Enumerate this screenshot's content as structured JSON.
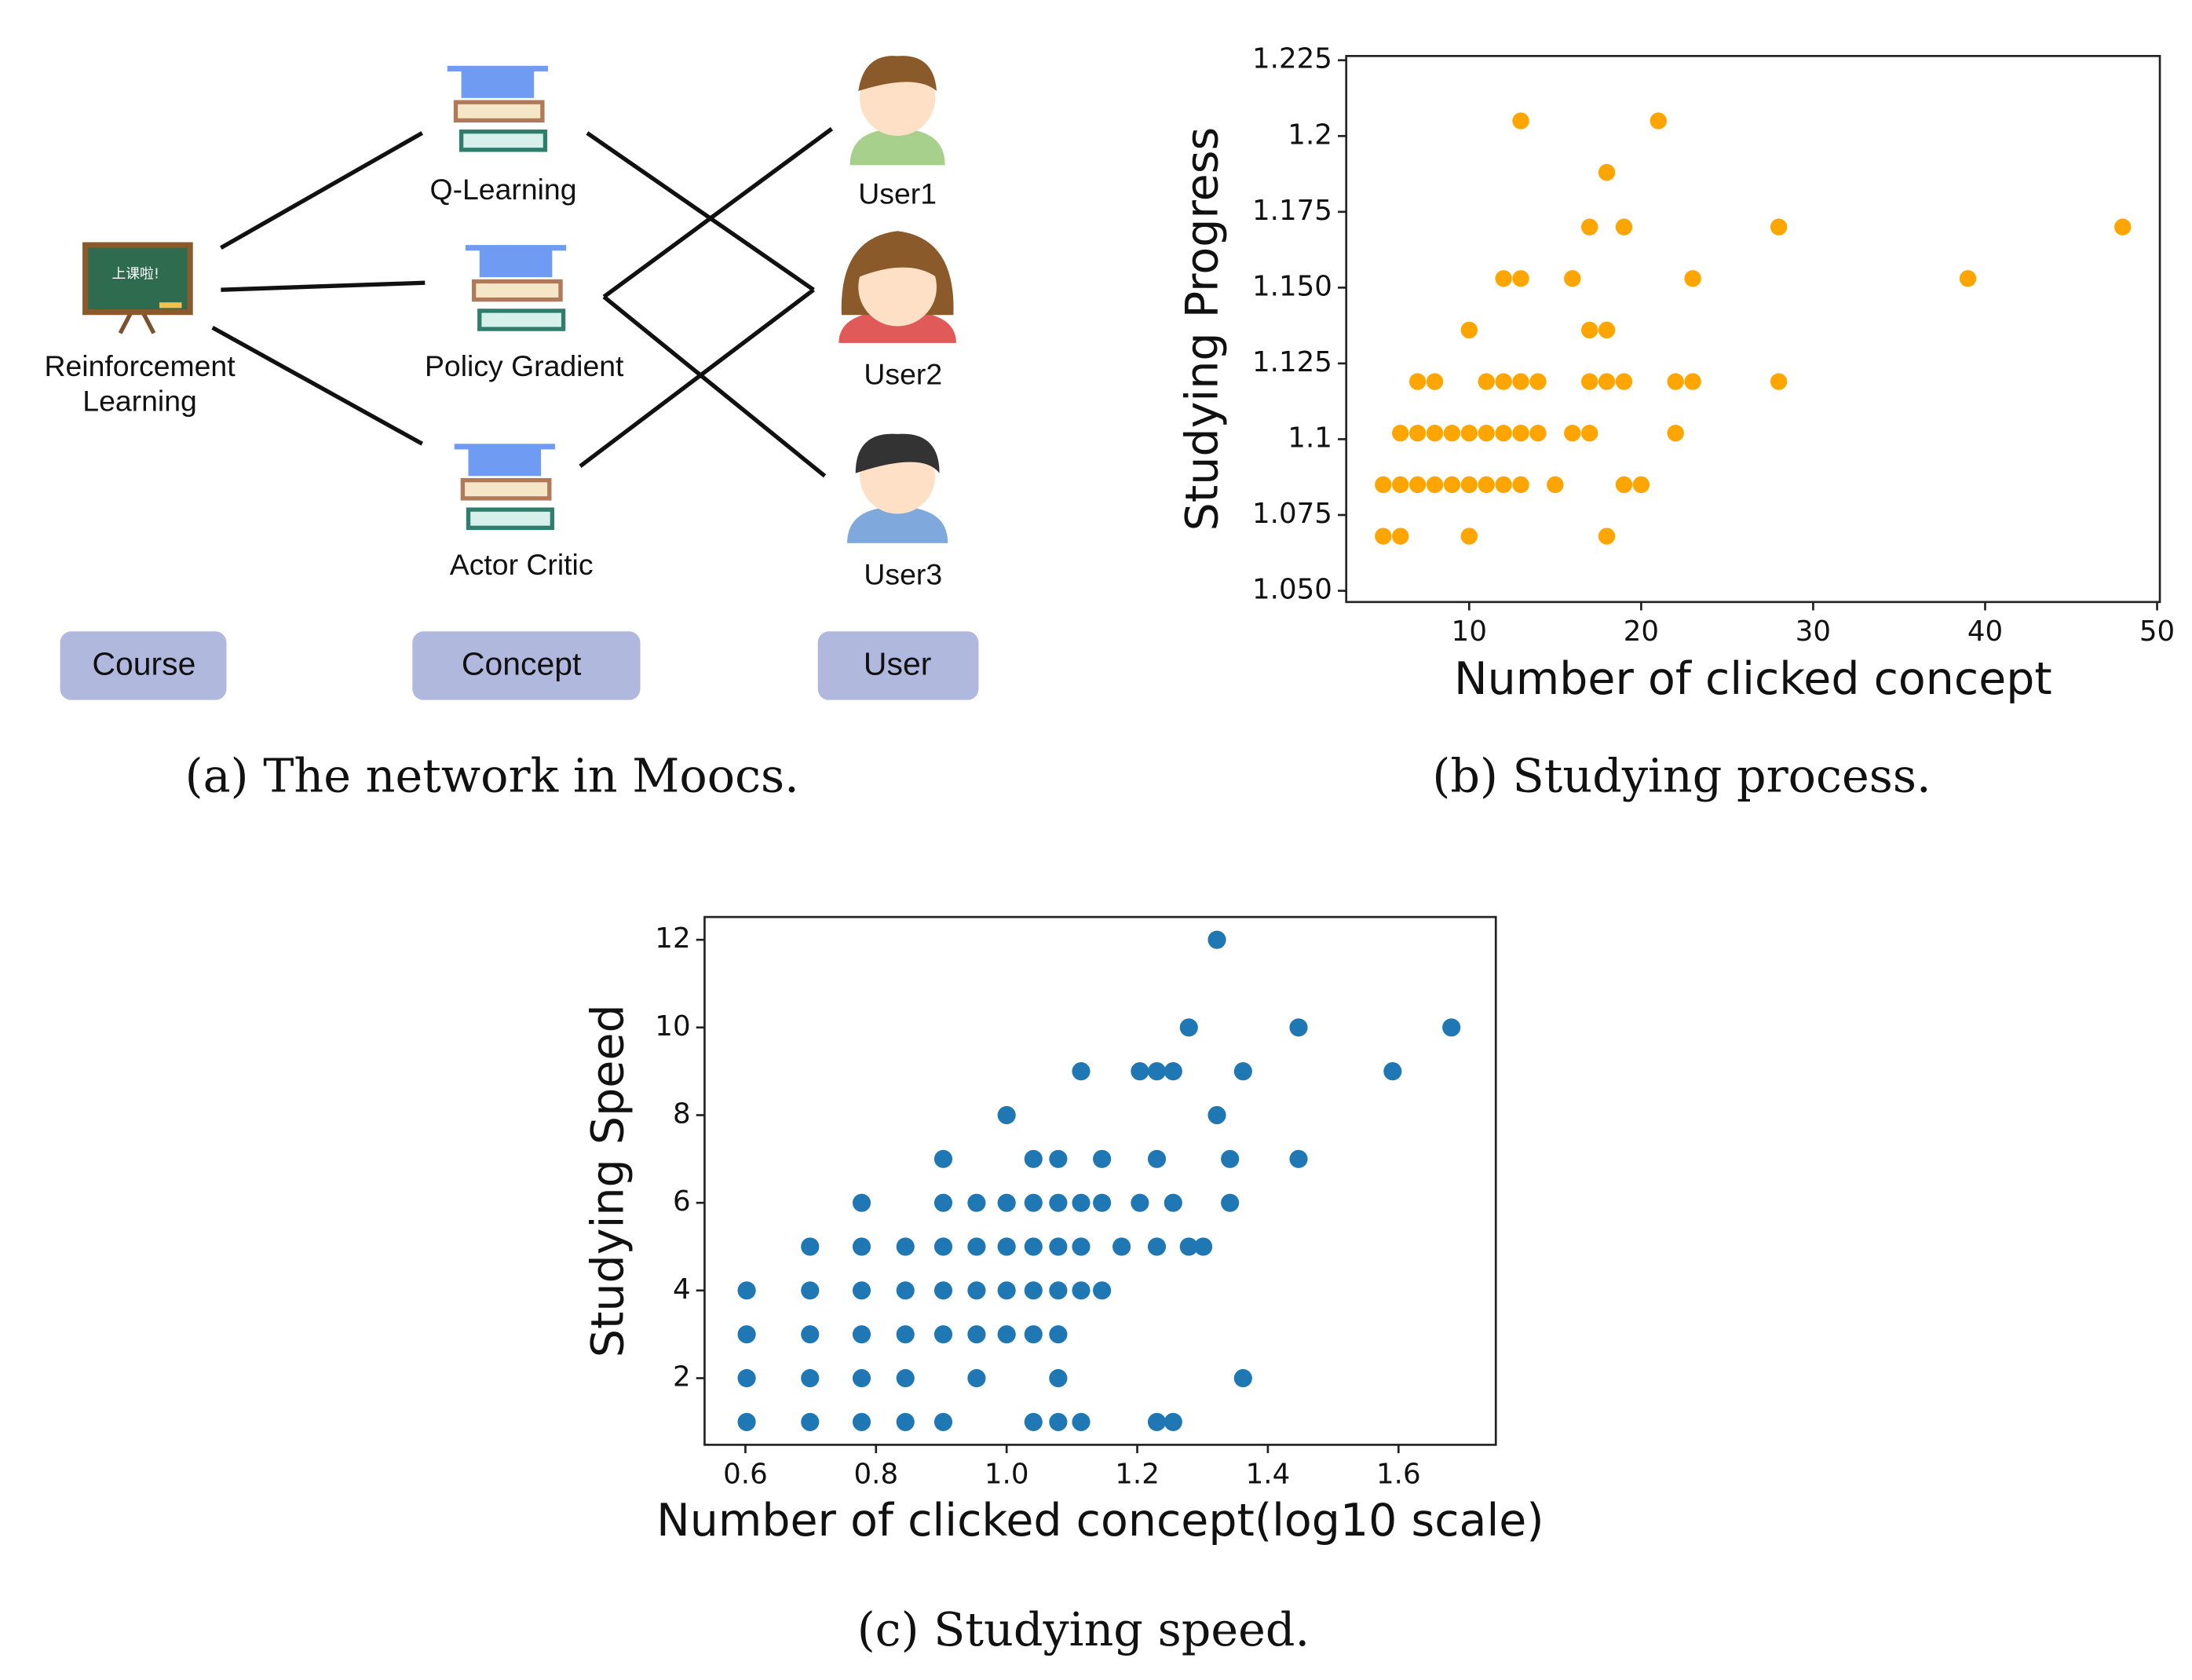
{
  "diagram": {
    "course": {
      "label": [
        "Reinforcement",
        "Learning"
      ],
      "board": "上课啦!"
    },
    "concepts": [
      "Q-Learning",
      "Policy Gradient",
      "Actor Critic"
    ],
    "users": [
      "User1",
      "User2",
      "User3"
    ],
    "legend": [
      "Course",
      "Concept",
      "User"
    ]
  },
  "captions": [
    "(a) The network in Moocs.",
    "(b) Studying process.",
    "(c) Studying speed."
  ],
  "chart_data": [
    {
      "type": "scatter",
      "xlabel": "Number of clicked concept",
      "ylabel": "Studying Progress",
      "color": "#ffa500",
      "xlim": [
        2.85,
        50.16
      ],
      "xticks": [
        10,
        20,
        30,
        40,
        50
      ],
      "ylim": [
        1.0463,
        1.2264
      ],
      "yticks": [
        {
          "value": 1.05,
          "label": "1.050"
        },
        1.075,
        1.1,
        1.125,
        {
          "value": 1.15,
          "label": "1.150"
        },
        1.175,
        1.2,
        1.225
      ],
      "x": [
        13,
        21,
        18,
        17,
        19,
        28,
        48,
        12,
        13,
        16,
        23,
        39,
        10,
        17,
        18,
        7,
        8,
        11,
        12,
        13,
        14,
        17,
        18,
        19,
        22,
        23,
        28,
        6,
        7,
        8,
        9,
        10,
        11,
        12,
        13,
        14,
        16,
        17,
        22,
        5,
        6,
        7,
        8,
        9,
        10,
        11,
        12,
        13,
        15,
        19,
        20,
        5,
        6,
        10,
        18
      ],
      "values": [
        1.205,
        1.205,
        1.188,
        1.17,
        1.17,
        1.17,
        1.17,
        1.153,
        1.153,
        1.153,
        1.153,
        1.153,
        1.136,
        1.136,
        1.136,
        1.119,
        1.119,
        1.119,
        1.119,
        1.119,
        1.119,
        1.119,
        1.119,
        1.119,
        1.119,
        1.119,
        1.119,
        1.102,
        1.102,
        1.102,
        1.102,
        1.102,
        1.102,
        1.102,
        1.102,
        1.102,
        1.102,
        1.102,
        1.102,
        1.085,
        1.085,
        1.085,
        1.085,
        1.085,
        1.085,
        1.085,
        1.085,
        1.085,
        1.085,
        1.085,
        1.085,
        1.068,
        1.068,
        1.068,
        1.068
      ]
    },
    {
      "type": "scatter",
      "xlabel": "Number of clicked concept(log10 scale)",
      "ylabel": "Studying Speed",
      "color": "#1f77b4",
      "xlim": [
        0.5375,
        1.749
      ],
      "xticks": [
        0.6,
        0.8,
        {
          "value": 1,
          "label": "1.0"
        },
        1.2,
        1.4,
        1.6
      ],
      "ylim": [
        0.48,
        12.52
      ],
      "yticks": [
        2,
        4,
        6,
        8,
        10,
        12
      ],
      "x": [
        1.322,
        1.279,
        1.447,
        1.681,
        1.114,
        1.204,
        1.23,
        1.255,
        1.362,
        1.591,
        1.0,
        1.322,
        0.903,
        1.041,
        1.079,
        1.146,
        1.23,
        1.342,
        1.447,
        0.778,
        0.903,
        0.954,
        1.0,
        1.041,
        1.079,
        1.114,
        1.146,
        1.204,
        1.255,
        1.342,
        0.699,
        0.778,
        0.845,
        0.903,
        0.954,
        1.0,
        1.041,
        1.079,
        1.114,
        1.176,
        1.23,
        1.279,
        1.301,
        0.602,
        0.699,
        0.778,
        0.845,
        0.903,
        0.954,
        1.0,
        1.041,
        1.079,
        1.114,
        1.146,
        0.602,
        0.699,
        0.778,
        0.845,
        0.903,
        0.954,
        1.0,
        1.041,
        1.079,
        0.602,
        0.699,
        0.778,
        0.845,
        0.954,
        1.079,
        1.362,
        0.602,
        0.699,
        0.778,
        0.845,
        0.903,
        1.041,
        1.079,
        1.114,
        1.23,
        1.255
      ],
      "values": [
        12,
        10,
        10,
        10,
        9,
        9,
        9,
        9,
        9,
        9,
        8,
        8,
        7,
        7,
        7,
        7,
        7,
        7,
        7,
        6,
        6,
        6,
        6,
        6,
        6,
        6,
        6,
        6,
        6,
        6,
        5,
        5,
        5,
        5,
        5,
        5,
        5,
        5,
        5,
        5,
        5,
        5,
        5,
        4,
        4,
        4,
        4,
        4,
        4,
        4,
        4,
        4,
        4,
        4,
        3,
        3,
        3,
        3,
        3,
        3,
        3,
        3,
        3,
        2,
        2,
        2,
        2,
        2,
        2,
        2,
        1,
        1,
        1,
        1,
        1,
        1,
        1,
        1,
        1,
        1
      ]
    }
  ]
}
